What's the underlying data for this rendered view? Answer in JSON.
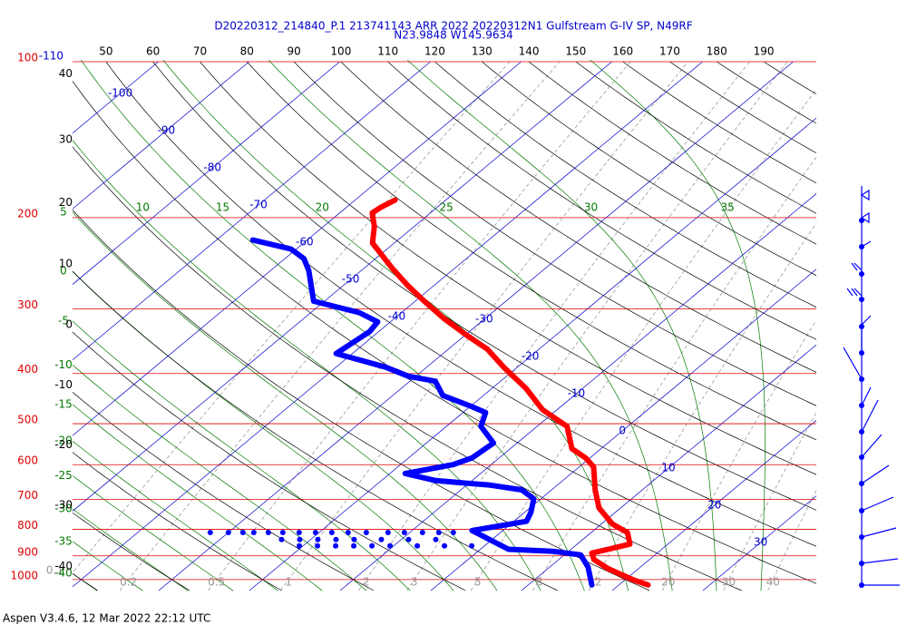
{
  "chart_data": {
    "type": "skew-t",
    "title": "D20220312_214840_P.1 213741143 ARR 2022  20220312N1 Gulfstream G-IV SP, N49RF",
    "subtitle": "N23.9848 W145.9634",
    "footer": "Aspen V3.4.6, 12 Mar 2022  22:12 UTC",
    "log_y": true,
    "ylim": [
      100,
      1050
    ],
    "xlim": [
      -39.5,
      42.5
    ],
    "yticks": [
      100,
      200,
      300,
      400,
      500,
      600,
      700,
      800,
      900,
      1000
    ],
    "pressure_color": "#e00000",
    "isotherm_ticks": [
      -110,
      -100,
      -90,
      -80,
      -70,
      -60,
      -50,
      -40,
      -30,
      -20,
      -10,
      0,
      10,
      20,
      30
    ],
    "isotherm_color": "#0000cc",
    "dry_adiabat_ticks": [
      -40,
      -30,
      -20,
      -10,
      0,
      10,
      20,
      30,
      40,
      50,
      60,
      70,
      80,
      90,
      100,
      110,
      120,
      130,
      140,
      150,
      160,
      170,
      180,
      190
    ],
    "dry_adiabat_color": "#000000",
    "moist_adiabat_ticks": [
      -40,
      -35,
      -30,
      -25,
      -20,
      -15,
      -10,
      -5,
      0,
      5,
      10,
      15,
      20,
      25,
      30,
      35
    ],
    "moist_adiabat_color": "#007a00",
    "mixing_ratio_ticks": [
      0.1,
      0.2,
      0.5,
      1,
      2,
      3,
      5,
      8,
      12,
      20,
      30,
      40
    ],
    "mixing_ratio_color": "#9a9a9a",
    "series": [
      {
        "color": "#ff0000",
        "line": true,
        "pressure": [
          1024,
          1000,
          952,
          915,
          889,
          874,
          854,
          811,
          781,
          727,
          671,
          606,
          582,
          559,
          506,
          470,
          427,
          389,
          359,
          338,
          314,
          290,
          271,
          250,
          224,
          208,
          196,
          191,
          185
        ],
        "values": [
          23.2,
          20.8,
          16.6,
          13.9,
          12.8,
          14.1,
          15.8,
          14.0,
          11.2,
          7.6,
          4.8,
          1.6,
          -0.5,
          -3.2,
          -6.7,
          -11.6,
          -16.3,
          -21.5,
          -25.7,
          -29.7,
          -34.4,
          -39.0,
          -42.8,
          -47.0,
          -52.4,
          -54.4,
          -56.4,
          -56.2,
          -55.6
        ]
      },
      {
        "color": "#0000ff",
        "line": true,
        "pressure": [
          1024,
          945,
          896,
          882,
          874,
          804,
          772,
          742,
          698,
          671,
          657,
          644,
          624,
          600,
          582,
          545,
          506,
          476,
          463,
          441,
          414,
          405,
          389,
          366,
          332,
          318,
          305,
          290,
          253,
          240,
          230,
          221
        ],
        "values": [
          17.0,
          14.2,
          11.8,
          8.3,
          3.1,
          -3.4,
          1.4,
          0.7,
          -0.8,
          -3.3,
          -7.4,
          -14.0,
          -18.3,
          -14.2,
          -13.0,
          -12.6,
          -16.2,
          -17.5,
          -19.9,
          -24.5,
          -27.2,
          -30.8,
          -34.5,
          -41.8,
          -41.0,
          -41.4,
          -44.7,
          -51.2,
          -55.8,
          -57.9,
          -60.6,
          -66.0
        ]
      },
      {
        "color": "#0000ff",
        "line": false,
        "pressure": [
          811,
          811,
          811,
          811,
          811,
          811,
          811,
          811,
          811,
          811,
          811,
          811,
          811,
          811,
          811,
          811,
          837,
          837,
          837,
          837,
          837,
          837,
          837,
          837,
          861,
          861,
          861,
          861,
          861,
          861,
          861,
          861,
          861
        ],
        "values": [
          -32.0,
          -30.0,
          -28.4,
          -27.2,
          -25.6,
          -24.0,
          -22.2,
          -20.4,
          -18.6,
          -16.8,
          -14.8,
          -12.4,
          -10.6,
          -8.6,
          -6.8,
          -5.2,
          -23.2,
          -21.2,
          -19.2,
          -17.2,
          -15.2,
          -12.2,
          -9.2,
          -6.2,
          -20.4,
          -18.4,
          -16.4,
          -14.4,
          -12.4,
          -10.4,
          -7.4,
          -4.4,
          -1.4
        ]
      }
    ]
  }
}
